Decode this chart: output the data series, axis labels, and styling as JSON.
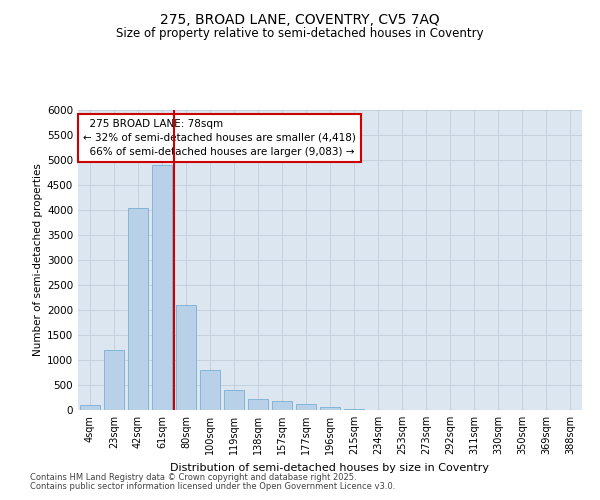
{
  "title_line1": "275, BROAD LANE, COVENTRY, CV5 7AQ",
  "title_line2": "Size of property relative to semi-detached houses in Coventry",
  "xlabel": "Distribution of semi-detached houses by size in Coventry",
  "ylabel": "Number of semi-detached properties",
  "categories": [
    "4sqm",
    "23sqm",
    "42sqm",
    "61sqm",
    "80sqm",
    "100sqm",
    "119sqm",
    "138sqm",
    "157sqm",
    "177sqm",
    "196sqm",
    "215sqm",
    "234sqm",
    "253sqm",
    "273sqm",
    "292sqm",
    "311sqm",
    "330sqm",
    "350sqm",
    "369sqm",
    "388sqm"
  ],
  "values": [
    100,
    1200,
    4050,
    4900,
    2100,
    800,
    400,
    225,
    175,
    125,
    55,
    20,
    8,
    3,
    2,
    1,
    0,
    0,
    0,
    0,
    0
  ],
  "bar_color": "#b8d0e8",
  "bar_edge_color": "#7aaed4",
  "vline_color": "#cc0000",
  "vline_x_index": 3.5,
  "annotation_box_color": "#cc0000",
  "property_label": "275 BROAD LANE: 78sqm",
  "pct_smaller": "32%",
  "pct_smaller_count": "4,418",
  "pct_larger": "66%",
  "pct_larger_count": "9,083",
  "ylim": [
    0,
    6000
  ],
  "yticks": [
    0,
    500,
    1000,
    1500,
    2000,
    2500,
    3000,
    3500,
    4000,
    4500,
    5000,
    5500,
    6000
  ],
  "grid_color": "#c0ccd8",
  "bg_color": "#dce6f0",
  "title_fontsize": 10,
  "subtitle_fontsize": 8.5,
  "footnote_line1": "Contains HM Land Registry data © Crown copyright and database right 2025.",
  "footnote_line2": "Contains public sector information licensed under the Open Government Licence v3.0."
}
